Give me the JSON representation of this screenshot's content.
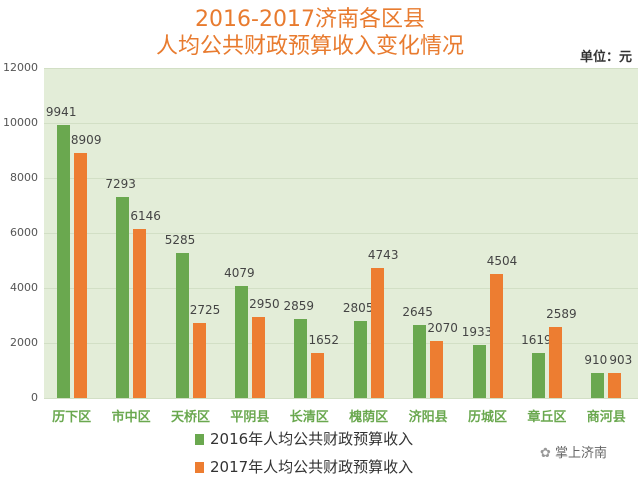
{
  "header": {
    "title_line1": "2016-2017济南各区县",
    "title_line2": "人均公共财政预算收入变化情况",
    "unit": "单位：元"
  },
  "colors": {
    "series_2016": "#6aa84f",
    "series_2017": "#ed7d31",
    "title": "#e87b2f",
    "plot_bg": "#e3edd8"
  },
  "watermark": {
    "icon": "wechat-icon",
    "text": "掌上济南"
  },
  "chart_data": {
    "type": "bar",
    "title": "2016-2017济南各区县人均公共财政预算收入变化情况",
    "xlabel": "",
    "ylabel": "单位：元",
    "ylim": [
      0,
      12000
    ],
    "yticks": [
      "0",
      "2000",
      "4000",
      "6000",
      "8000",
      "10000",
      "12000"
    ],
    "grid": true,
    "legend_position": "bottom",
    "categories": [
      "历下区",
      "市中区",
      "天桥区",
      "平阴县",
      "长清区",
      "槐荫区",
      "济阳县",
      "历城区",
      "章丘区",
      "商河县"
    ],
    "series": [
      {
        "name": "2016年人均公共财政预算收入",
        "values": [
          9941,
          7293,
          5285,
          4079,
          2859,
          2805,
          2645,
          1933,
          1619,
          910
        ]
      },
      {
        "name": "2017年人均公共财政预算收入",
        "values": [
          8909,
          6146,
          2725,
          2950,
          1652,
          4743,
          2070,
          4504,
          2589,
          903
        ]
      }
    ]
  }
}
